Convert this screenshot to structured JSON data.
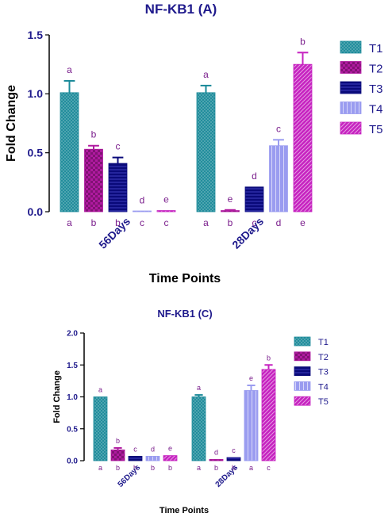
{
  "chart_data": [
    {
      "type": "bar",
      "title": "NF-KB1 (A)",
      "xlabel": "Time Points",
      "ylabel": "Fold Change",
      "ylim": [
        0,
        1.5
      ],
      "yticks": [
        "0.0",
        "0.5",
        "1.0",
        "1.5"
      ],
      "ytick_values": [
        0,
        0.5,
        1.0,
        1.5
      ],
      "categories": [
        "56Days",
        "28Days"
      ],
      "legend_position": "right",
      "series": [
        {
          "name": "T1",
          "color": "#1b8a99",
          "pattern": "cross",
          "values": [
            1.01,
            1.01
          ],
          "errors": [
            0.1,
            0.06
          ],
          "top_letters": [
            "a",
            "a"
          ],
          "bottom_letters": [
            "a",
            "a"
          ]
        },
        {
          "name": "T2",
          "color": "#b01aa0",
          "pattern": "check",
          "values": [
            0.53,
            0.01
          ],
          "errors": [
            0.03,
            0.005
          ],
          "top_letters": [
            "b",
            "e"
          ],
          "bottom_letters": [
            "b",
            "b"
          ]
        },
        {
          "name": "T3",
          "color": "#0a0a7a",
          "pattern": "hlines",
          "values": [
            0.41,
            0.21
          ],
          "errors": [
            0.05,
            0.0
          ],
          "top_letters": [
            "c",
            "d"
          ],
          "bottom_letters": [
            "b",
            "c"
          ]
        },
        {
          "name": "T4",
          "color": "#9a9cf0",
          "pattern": "vlines",
          "values": [
            0.005,
            0.56
          ],
          "errors": [
            0.0,
            0.05
          ],
          "top_letters": [
            "d",
            "c"
          ],
          "bottom_letters": [
            "c",
            "d"
          ]
        },
        {
          "name": "T5",
          "color": "#c622c0",
          "pattern": "diag",
          "values": [
            0.01,
            1.25
          ],
          "errors": [
            0.0,
            0.1
          ],
          "top_letters": [
            "e",
            "b"
          ],
          "bottom_letters": [
            "c",
            "e"
          ]
        }
      ]
    },
    {
      "type": "bar",
      "title": "NF-KB1 (C)",
      "xlabel": "Time Points",
      "ylabel": "Fold Change",
      "ylim": [
        0,
        2.0
      ],
      "yticks": [
        "0.0",
        "0.5",
        "1.0",
        "1.5",
        "2.0"
      ],
      "ytick_values": [
        0,
        0.5,
        1.0,
        1.5,
        2.0
      ],
      "categories": [
        "56Days",
        "28Days"
      ],
      "legend_position": "right",
      "series": [
        {
          "name": "T1",
          "color": "#1b8a99",
          "pattern": "cross",
          "values": [
            1.0,
            1.0
          ],
          "errors": [
            0.0,
            0.03
          ],
          "top_letters": [
            "a",
            "a"
          ],
          "bottom_letters": [
            "a",
            "a"
          ]
        },
        {
          "name": "T2",
          "color": "#b01aa0",
          "pattern": "check",
          "values": [
            0.17,
            0.02
          ],
          "errors": [
            0.03,
            0.0
          ],
          "top_letters": [
            "b",
            "d"
          ],
          "bottom_letters": [
            "b",
            "b"
          ]
        },
        {
          "name": "T3",
          "color": "#0a0a7a",
          "pattern": "hlines",
          "values": [
            0.07,
            0.05
          ],
          "errors": [
            0.0,
            0.0
          ],
          "top_letters": [
            "c",
            "c"
          ],
          "bottom_letters": [
            "b",
            "b"
          ]
        },
        {
          "name": "T4",
          "color": "#9a9cf0",
          "pattern": "vlines",
          "values": [
            0.07,
            1.1
          ],
          "errors": [
            0.0,
            0.08
          ],
          "top_letters": [
            "d",
            "e"
          ],
          "bottom_letters": [
            "b",
            "a"
          ]
        },
        {
          "name": "T5",
          "color": "#c622c0",
          "pattern": "diag",
          "values": [
            0.08,
            1.43
          ],
          "errors": [
            0.0,
            0.07
          ],
          "top_letters": [
            "e",
            "b"
          ],
          "bottom_letters": [
            "b",
            "c"
          ]
        }
      ]
    }
  ]
}
